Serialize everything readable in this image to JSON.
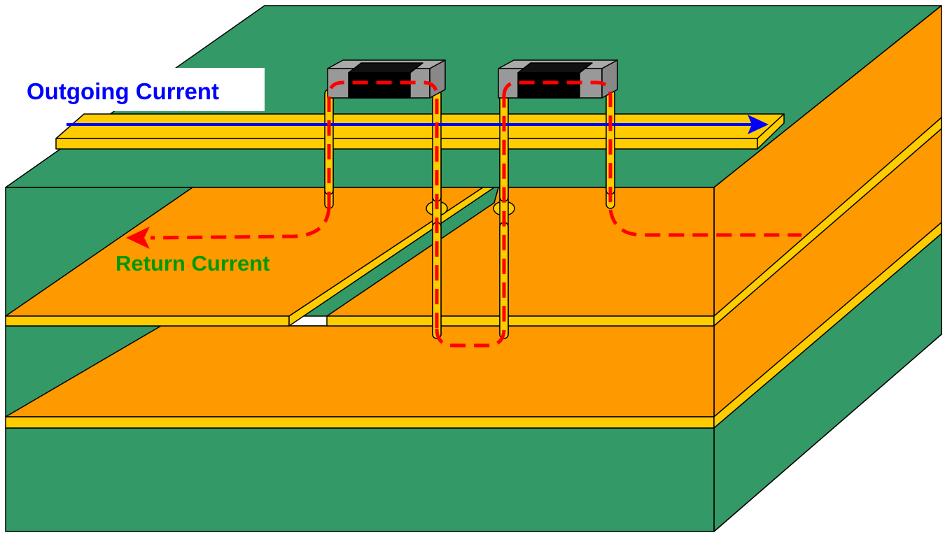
{
  "labels": {
    "outgoing": "Outgoing Current",
    "return": "Return Current"
  },
  "colors": {
    "board_green": "#339966",
    "copper_plane": "#FF9900",
    "copper_edge": "#FFCC00",
    "outgoing_current": "#0000FF",
    "return_current": "#FF0000",
    "return_label": "#009900",
    "component_body": "#000000",
    "component_pad": "#999999"
  },
  "components": [
    {
      "name": "component-left"
    },
    {
      "name": "component-right"
    }
  ],
  "vias": [
    {
      "name": "via-1"
    },
    {
      "name": "via-2"
    },
    {
      "name": "via-3"
    },
    {
      "name": "via-4"
    }
  ]
}
